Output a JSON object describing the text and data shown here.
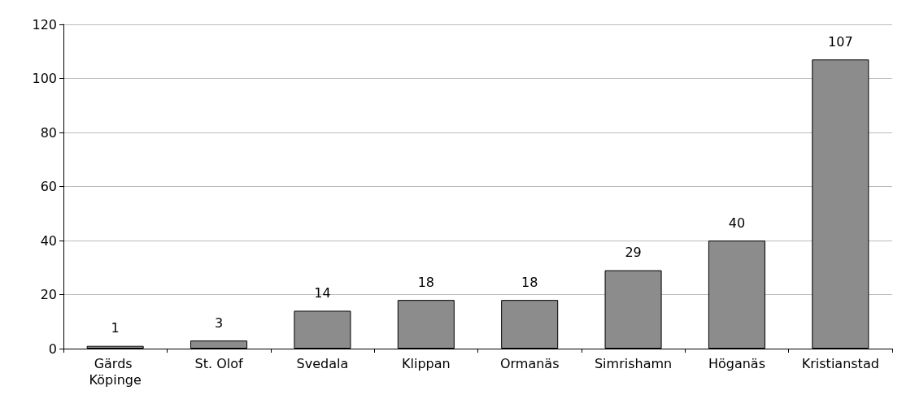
{
  "chart_data": {
    "type": "bar",
    "categories": [
      "Gärds Köpinge",
      "St. Olof",
      "Svedala",
      "Klippan",
      "Ormanäs",
      "Simrishamn",
      "Höganäs",
      "Kristianstad"
    ],
    "values": [
      1,
      3,
      14,
      18,
      18,
      29,
      40,
      107
    ],
    "color": "#8c8c8c",
    "ylim": [
      0,
      120
    ],
    "yticks": [
      0,
      20,
      40,
      60,
      80,
      100,
      120
    ],
    "grid": "y",
    "data_labels": true
  }
}
